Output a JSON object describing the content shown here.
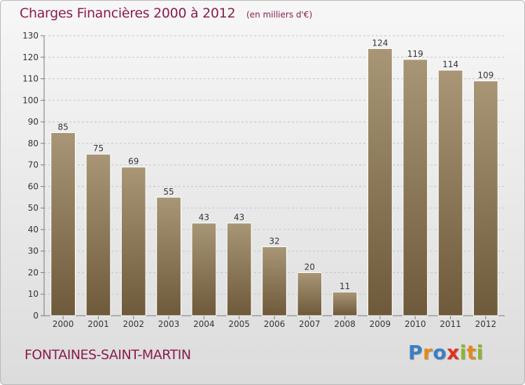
{
  "header": {
    "title": "Charges Financières 2000 à 2012",
    "subtitle": "(en milliers d'€)"
  },
  "footer": {
    "town": "FONTAINES-SAINT-MARTIN",
    "brand_letters": [
      {
        "ch": "P",
        "color": "#3b7fc4"
      },
      {
        "ch": "r",
        "color": "#e08a1e"
      },
      {
        "ch": "o",
        "color": "#3b7fc4"
      },
      {
        "ch": "x",
        "color": "#e2301f"
      },
      {
        "ch": "i",
        "color": "#8ab734"
      },
      {
        "ch": "t",
        "color": "#e08a1e"
      },
      {
        "ch": "i",
        "color": "#8ab734"
      }
    ]
  },
  "colors": {
    "bar_top": "#a89676",
    "bar_bottom": "#6e5a3a",
    "title": "#8b1c4e"
  },
  "chart_data": {
    "type": "bar",
    "categories": [
      "2000",
      "2001",
      "2002",
      "2003",
      "2004",
      "2005",
      "2006",
      "2007",
      "2008",
      "2009",
      "2010",
      "2011",
      "2012"
    ],
    "values": [
      85,
      75,
      69,
      55,
      43,
      43,
      32,
      20,
      11,
      124,
      119,
      114,
      109
    ],
    "ylim": [
      0,
      130
    ],
    "yticks": [
      0,
      10,
      20,
      30,
      40,
      50,
      60,
      70,
      80,
      90,
      100,
      110,
      120,
      130
    ],
    "grid": "horizontal dashed",
    "data_labels": true
  }
}
